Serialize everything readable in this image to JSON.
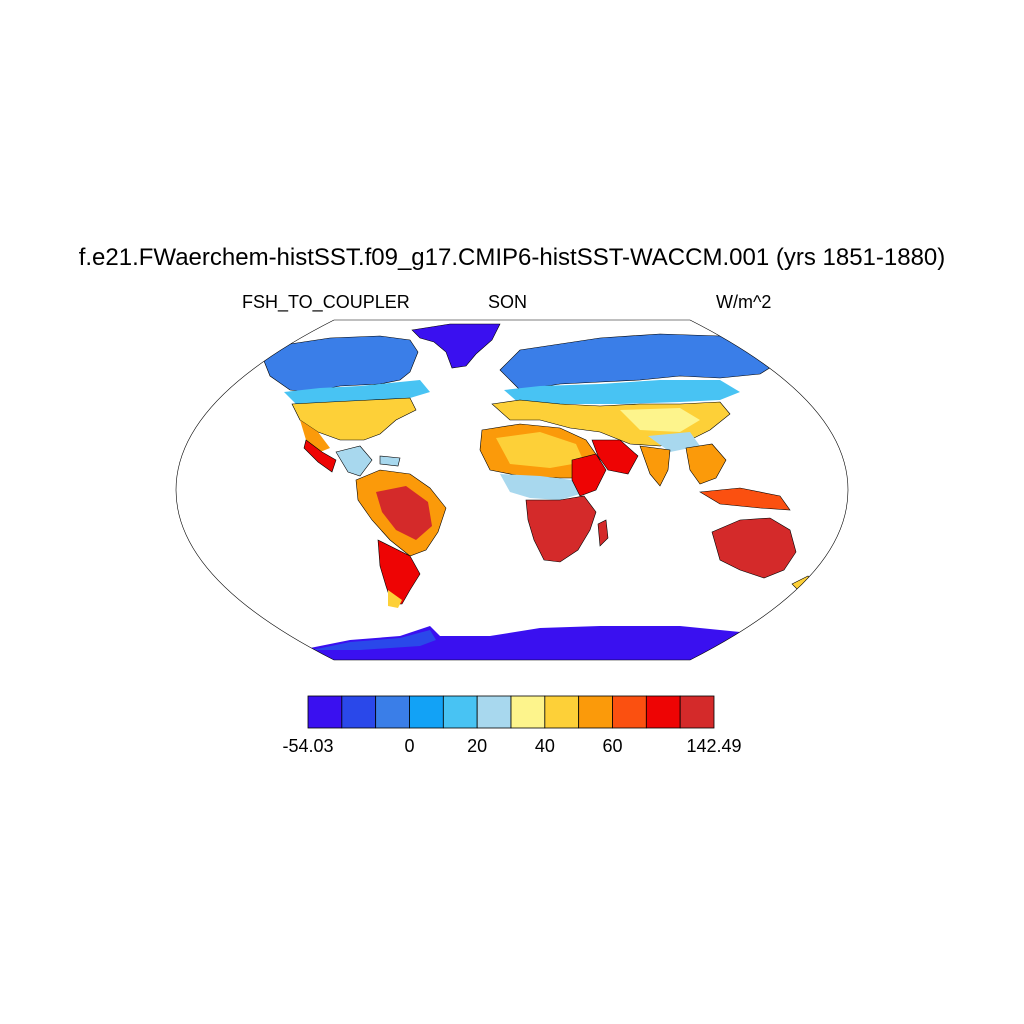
{
  "title": "f.e21.FWaerchem-histSST.f09_g17.CMIP6-histSST-WACCM.001 (yrs 1851-1880)",
  "variable": "FSH_TO_COUPLER",
  "season": "SON",
  "units": "W/m^2",
  "colorbar": {
    "colors": [
      "#3a10f0",
      "#2a48ea",
      "#3a7ee8",
      "#12a2f6",
      "#48c3f3",
      "#a8d8ee",
      "#fdf48c",
      "#fdd038",
      "#fb9a0a",
      "#fb5010",
      "#ee0404",
      "#d42a2a"
    ],
    "labels": [
      {
        "text": "-54.03",
        "boundary": 0
      },
      {
        "text": "0",
        "boundary": 3
      },
      {
        "text": "20",
        "boundary": 5
      },
      {
        "text": "40",
        "boundary": 7
      },
      {
        "text": "60",
        "boundary": 9
      },
      {
        "text": "142.49",
        "boundary": 12
      }
    ]
  }
}
